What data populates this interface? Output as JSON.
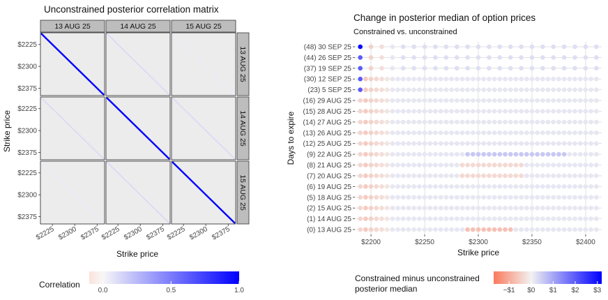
{
  "chart_data": [
    {
      "type": "heatmap",
      "title": "Unconstrained posterior correlation matrix",
      "xlabel": "Strike price",
      "ylabel": "Strike price",
      "facet_rows": [
        "13 AUG 25",
        "14 AUG 25",
        "15 AUG 25"
      ],
      "facet_cols": [
        "13 AUG 25",
        "14 AUG 25",
        "15 AUG 25"
      ],
      "x_ticks": [
        "$2225",
        "$2300",
        "$2375"
      ],
      "y_ticks": [
        "$2225",
        "$2300",
        "$2375"
      ],
      "strike_range": [
        2185,
        2400
      ],
      "cell_values": [
        [
          1.0,
          0.12,
          0.05
        ],
        [
          0.12,
          1.0,
          0.12
        ],
        [
          0.05,
          0.12,
          1.0
        ]
      ],
      "legend": {
        "title": "Correlation",
        "ticks": [
          "0.0",
          "0.5",
          "1.0"
        ],
        "range": [
          -0.1,
          1.0
        ],
        "colors": [
          "#fbe2da",
          "#f7f7f7",
          "#0000ff"
        ]
      }
    },
    {
      "type": "scatter",
      "title": "Change in posterior median of option prices",
      "subtitle": "Constrained vs. unconstrained",
      "xlabel": "Strike price",
      "ylabel": "Days to expire",
      "xlim": [
        2185,
        2415
      ],
      "x_ticks": [
        2200,
        2250,
        2300,
        2350,
        2400
      ],
      "x_tick_labels": [
        "$2200",
        "$2250",
        "$2300",
        "$2350",
        "$2400"
      ],
      "rows": [
        {
          "label": "(0) 13 AUG 25",
          "strike_min": 2190,
          "strike_max": 2410,
          "step": 5
        },
        {
          "label": "(1) 14 AUG 25",
          "strike_min": 2190,
          "strike_max": 2410,
          "step": 5
        },
        {
          "label": "(2) 15 AUG 25",
          "strike_min": 2190,
          "strike_max": 2410,
          "step": 5
        },
        {
          "label": "(5) 18 AUG 25",
          "strike_min": 2190,
          "strike_max": 2410,
          "step": 5
        },
        {
          "label": "(6) 19 AUG 25",
          "strike_min": 2190,
          "strike_max": 2410,
          "step": 5
        },
        {
          "label": "(7) 20 AUG 25",
          "strike_min": 2190,
          "strike_max": 2410,
          "step": 5
        },
        {
          "label": "(8) 21 AUG 25",
          "strike_min": 2190,
          "strike_max": 2410,
          "step": 5
        },
        {
          "label": "(9) 22 AUG 25",
          "strike_min": 2190,
          "strike_max": 2410,
          "step": 5
        },
        {
          "label": "(12) 25 AUG 25",
          "strike_min": 2190,
          "strike_max": 2410,
          "step": 5
        },
        {
          "label": "(13) 26 AUG 25",
          "strike_min": 2190,
          "strike_max": 2410,
          "step": 5
        },
        {
          "label": "(14) 27 AUG 25",
          "strike_min": 2190,
          "strike_max": 2410,
          "step": 5
        },
        {
          "label": "(15) 28 AUG 25",
          "strike_min": 2190,
          "strike_max": 2410,
          "step": 5
        },
        {
          "label": "(16) 29 AUG 25",
          "strike_min": 2190,
          "strike_max": 2410,
          "step": 5
        },
        {
          "label": "(23) 5 SEP 25",
          "strike_min": 2190,
          "strike_max": 2410,
          "step": 5
        },
        {
          "label": "(30) 12 SEP 25",
          "strike_min": 2190,
          "strike_max": 2410,
          "step": 5
        },
        {
          "label": "(37) 19 SEP 25",
          "strike_min": 2190,
          "strike_max": 2410,
          "step": 10
        },
        {
          "label": "(44) 26 SEP 25",
          "strike_min": 2190,
          "strike_max": 2410,
          "step": 10
        },
        {
          "label": "(48) 30 SEP 25",
          "strike_min": 2190,
          "strike_max": 2410,
          "step": 10
        }
      ],
      "legend": {
        "title_lines": [
          "Constrained minus unconstrained",
          "posterior median"
        ],
        "ticks": [
          {
            "label": "−$1",
            "value": -1
          },
          {
            "label": "$0",
            "value": 0
          },
          {
            "label": "$1",
            "value": 1
          },
          {
            "label": "$2",
            "value": 2
          },
          {
            "label": "$3",
            "value": 3
          }
        ],
        "range": [
          -1.7,
          3.2
        ],
        "colors": [
          "#fa7a5c",
          "#f2f2f2",
          "#0000ff"
        ]
      }
    }
  ]
}
